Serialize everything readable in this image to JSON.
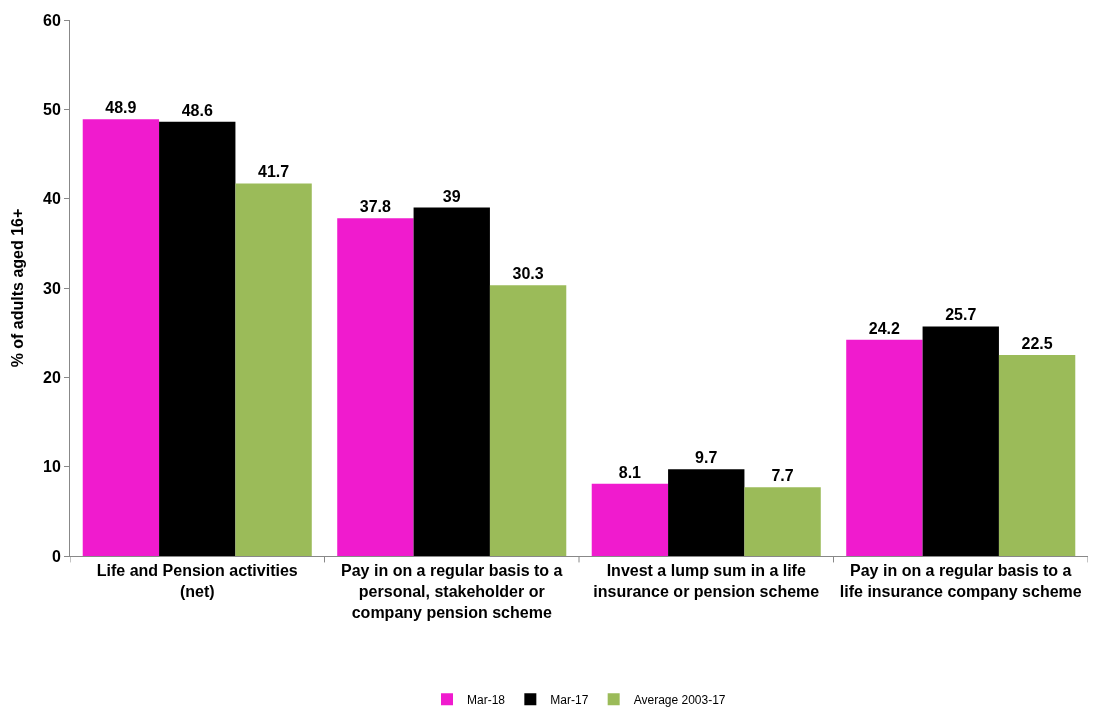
{
  "chart_data": {
    "type": "bar",
    "ylabel": "% of adults aged 16+",
    "categories": [
      "Life and Pension activities (net)",
      "Pay in on a regular basis to a personal, stakeholder or company pension scheme",
      "Invest a lump sum in a life insurance or pension scheme",
      "Pay in on a regular basis to a life insurance company scheme"
    ],
    "series": [
      {
        "name": "Mar-18",
        "color": "#f01bce",
        "values": [
          48.9,
          37.8,
          8.1,
          24.2
        ]
      },
      {
        "name": "Mar-17",
        "color": "#000000",
        "values": [
          48.6,
          39,
          9.7,
          25.7
        ]
      },
      {
        "name": "Average 2003-17",
        "color": "#9bbb59",
        "values": [
          41.7,
          30.3,
          7.7,
          22.5
        ]
      }
    ],
    "ylim": [
      0,
      60
    ],
    "yticks": [
      0,
      10,
      20,
      30,
      40,
      50,
      60
    ],
    "grid": false,
    "legend": "bottom",
    "data_labels": true
  }
}
